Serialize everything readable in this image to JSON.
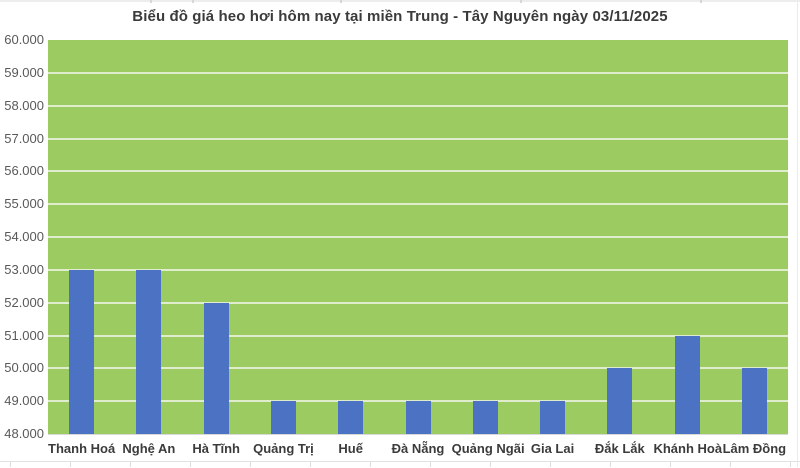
{
  "chart_data": {
    "type": "bar",
    "title": "Biểu đồ giá heo hơi hôm nay tại miền Trung - Tây Nguyên ngày 03/11/2025",
    "categories": [
      "Thanh Hoá",
      "Nghệ An",
      "Hà Tĩnh",
      "Quảng Trị",
      "Huế",
      "Đà Nẵng",
      "Quảng Ngãi",
      "Gia Lai",
      "Đắk Lắk",
      "Khánh Hoà",
      "Lâm Đồng"
    ],
    "values": [
      53000,
      53000,
      52000,
      49000,
      49000,
      49000,
      49000,
      49000,
      50000,
      51000,
      50000
    ],
    "xlabel": "",
    "ylabel": "",
    "ylim": [
      48000,
      60000
    ],
    "ytick_step": 1000,
    "ytick_labels": [
      "48.000",
      "49.000",
      "50.000",
      "51.000",
      "52.000",
      "53.000",
      "54.000",
      "55.000",
      "56.000",
      "57.000",
      "58.000",
      "59.000",
      "60.000"
    ],
    "grid": "horizontal",
    "legend": "none",
    "colors": {
      "bar": "#4C72C4",
      "plot_background": "#9CCB62",
      "gridline": "#DFEDCC",
      "axis_line": "#D9D9D9",
      "title_text": "#3B3B3B",
      "xtick_text": "#3B3B3B",
      "ytick_text": "#595959",
      "page_background": "#FFFFFF"
    }
  }
}
